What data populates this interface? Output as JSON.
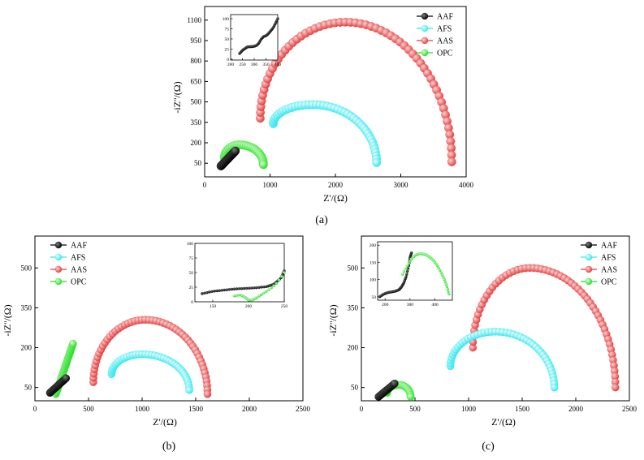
{
  "figure": {
    "panel_labels": [
      "(a)",
      "(b)",
      "(c)"
    ]
  },
  "colors": {
    "AAF": "#000000",
    "AFS": "#2ee6ee",
    "AAS": "#e03a3a",
    "OPC": "#22dd22"
  },
  "chart_data": [
    {
      "id": "a",
      "type": "scatter",
      "title": "",
      "xlabel": "Z'/(Ω)",
      "ylabel": "-iZ''/(Ω)",
      "xlim": [
        0,
        4000
      ],
      "ylim": [
        -50,
        1200
      ],
      "xticks": [
        "0",
        "1000",
        "2000",
        "3000",
        "4000"
      ],
      "yticks": [
        "50",
        "200",
        "350",
        "500",
        "650",
        "800",
        "950",
        "1100"
      ],
      "ytick_values": [
        50,
        200,
        350,
        500,
        650,
        800,
        950,
        1100
      ],
      "legend": "top-right",
      "legend_entries": [
        "AAF",
        "AFS",
        "AAS",
        "OPC"
      ],
      "series": [
        {
          "name": "AAS",
          "shape": "arc",
          "start": [
            850,
            380
          ],
          "peak": [
            2150,
            1085
          ],
          "end": [
            3780,
            60
          ],
          "n": 58
        },
        {
          "name": "AFS",
          "shape": "arc",
          "start": [
            1050,
            340
          ],
          "peak": [
            1650,
            480
          ],
          "end": [
            2630,
            55
          ],
          "n": 44
        },
        {
          "name": "OPC",
          "shape": "arc",
          "start": [
            300,
            90
          ],
          "peak": [
            530,
            185
          ],
          "end": [
            900,
            40
          ],
          "n": 26
        },
        {
          "name": "AAF",
          "shape": "line",
          "start": [
            250,
            30
          ],
          "end": [
            470,
            140
          ],
          "n": 18
        }
      ],
      "inset": {
        "xlim": [
          200,
          400
        ],
        "ylim": [
          -2,
          110
        ],
        "xticks": [
          "200",
          "250",
          "300",
          "350",
          "400"
        ],
        "xtick_values": [
          200,
          250,
          300,
          350,
          400
        ],
        "yticks": [
          "0",
          "25",
          "50",
          "75",
          "100"
        ],
        "ytick_values": [
          0,
          25,
          50,
          75,
          100
        ],
        "series": [
          {
            "name": "AAF",
            "shape": "path",
            "points": [
              [
                238,
                14
              ],
              [
                250,
                22
              ],
              [
                260,
                26
              ],
              [
                270,
                30
              ],
              [
                280,
                31
              ],
              [
                290,
                31
              ],
              [
                300,
                32
              ],
              [
                310,
                34
              ],
              [
                320,
                40
              ],
              [
                330,
                50
              ],
              [
                340,
                56
              ],
              [
                350,
                58
              ],
              [
                360,
                63
              ],
              [
                370,
                70
              ],
              [
                380,
                77
              ],
              [
                390,
                88
              ],
              [
                400,
                100
              ]
            ],
            "n": 44
          }
        ]
      }
    },
    {
      "id": "b",
      "type": "scatter",
      "xlabel": "Z'/(Ω)",
      "ylabel": "-iZ''/(Ω)",
      "xlim": [
        0,
        2500
      ],
      "ylim": [
        0,
        620
      ],
      "xticks": [
        "0",
        "500",
        "1000",
        "1500",
        "2000",
        "2500"
      ],
      "yticks": [
        "50",
        "200",
        "350",
        "500"
      ],
      "ytick_values": [
        50,
        200,
        350,
        500
      ],
      "legend": "top-left",
      "legend_entries": [
        "AAF",
        "AFS",
        "AAS",
        "OPC"
      ],
      "series": [
        {
          "name": "AAS",
          "shape": "arc",
          "start": [
            545,
            70
          ],
          "peak": [
            1030,
            305
          ],
          "end": [
            1610,
            25
          ],
          "n": 50
        },
        {
          "name": "AFS",
          "shape": "arc",
          "start": [
            715,
            100
          ],
          "peak": [
            1000,
            175
          ],
          "end": [
            1440,
            40
          ],
          "n": 38
        },
        {
          "name": "OPC",
          "shape": "line",
          "start": [
            195,
            25
          ],
          "end": [
            355,
            215
          ],
          "n": 26
        },
        {
          "name": "AAF",
          "shape": "line",
          "start": [
            140,
            30
          ],
          "end": [
            290,
            85
          ],
          "n": 20
        }
      ],
      "inset": {
        "xlim": [
          125,
          250
        ],
        "ylim": [
          0,
          100
        ],
        "xticks": [
          "150",
          "200",
          "250"
        ],
        "xtick_values": [
          150,
          200,
          250
        ],
        "yticks": [
          "0",
          "25",
          "50",
          "75",
          "100"
        ],
        "ytick_values": [
          0,
          25,
          50,
          75,
          100
        ],
        "series": [
          {
            "name": "AAF",
            "shape": "path",
            "points": [
              [
                135,
                14
              ],
              [
                150,
                18
              ],
              [
                165,
                20
              ],
              [
                180,
                22
              ],
              [
                195,
                23
              ],
              [
                210,
                24
              ],
              [
                225,
                26
              ],
              [
                235,
                30
              ],
              [
                245,
                40
              ],
              [
                250,
                53
              ]
            ],
            "n": 40
          },
          {
            "name": "OPC",
            "shape": "path",
            "points": [
              [
                180,
                10
              ],
              [
                188,
                12
              ],
              [
                195,
                8
              ],
              [
                200,
                3
              ],
              [
                205,
                3
              ],
              [
                212,
                7
              ],
              [
                220,
                14
              ],
              [
                230,
                22
              ],
              [
                240,
                32
              ],
              [
                250,
                50
              ]
            ],
            "n": 26
          }
        ]
      }
    },
    {
      "id": "c",
      "type": "scatter",
      "xlabel": "Z'/(Ω)",
      "ylabel": "-iZ''/(Ω)",
      "xlim": [
        0,
        2500
      ],
      "ylim": [
        0,
        620
      ],
      "xticks": [
        "0",
        "500",
        "1000",
        "1500",
        "2000",
        "2500"
      ],
      "yticks": [
        "50",
        "200",
        "350",
        "500"
      ],
      "ytick_values": [
        50,
        200,
        350,
        500
      ],
      "legend": "top-right",
      "legend_entries": [
        "AAF",
        "AFS",
        "AAS",
        "OPC"
      ],
      "series": [
        {
          "name": "AAS",
          "shape": "arc",
          "start": [
            1040,
            200
          ],
          "peak": [
            1570,
            500
          ],
          "end": [
            2370,
            50
          ],
          "n": 56
        },
        {
          "name": "AFS",
          "shape": "arc",
          "start": [
            830,
            130
          ],
          "peak": [
            1250,
            260
          ],
          "end": [
            1800,
            50
          ],
          "n": 44
        },
        {
          "name": "OPC",
          "shape": "arc",
          "start": [
            240,
            30
          ],
          "peak": [
            350,
            60
          ],
          "end": [
            460,
            15
          ],
          "n": 20
        },
        {
          "name": "AAF",
          "shape": "line",
          "start": [
            160,
            15
          ],
          "end": [
            310,
            65
          ],
          "n": 16
        }
      ],
      "inset": {
        "xlim": [
          170,
          470
        ],
        "ylim": [
          40,
          210
        ],
        "xticks": [
          "200",
          "300",
          "400"
        ],
        "xtick_values": [
          200,
          300,
          400
        ],
        "yticks": [
          "50",
          "100",
          "150",
          "200"
        ],
        "ytick_values": [
          50,
          100,
          150,
          200
        ],
        "series": [
          {
            "name": "AAF",
            "shape": "path",
            "points": [
              [
                178,
                50
              ],
              [
                195,
                58
              ],
              [
                210,
                62
              ],
              [
                225,
                64
              ],
              [
                240,
                66
              ],
              [
                255,
                70
              ],
              [
                265,
                78
              ],
              [
                275,
                90
              ],
              [
                285,
                110
              ],
              [
                295,
                140
              ],
              [
                300,
                165
              ],
              [
                306,
                178
              ]
            ],
            "n": 40
          },
          {
            "name": "OPC",
            "shape": "path",
            "points": [
              [
                270,
                115
              ],
              [
                290,
                140
              ],
              [
                305,
                160
              ],
              [
                320,
                170
              ],
              [
                335,
                175
              ],
              [
                350,
                175
              ],
              [
                365,
                172
              ],
              [
                380,
                165
              ],
              [
                395,
                155
              ],
              [
                410,
                140
              ],
              [
                425,
                120
              ],
              [
                438,
                100
              ],
              [
                448,
                80
              ],
              [
                456,
                58
              ]
            ],
            "n": 40
          }
        ]
      }
    }
  ]
}
